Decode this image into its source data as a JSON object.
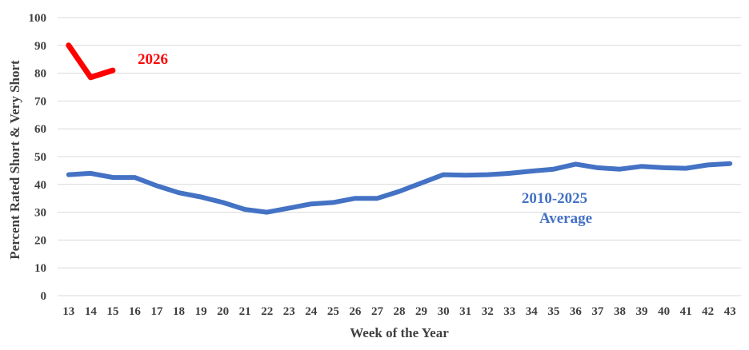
{
  "chart_data": {
    "type": "line",
    "title": "",
    "xlabel": "Week of the Year",
    "ylabel": "Percent Rated Short & Very Short",
    "x": [
      13,
      14,
      15,
      16,
      17,
      18,
      19,
      20,
      21,
      22,
      23,
      24,
      25,
      26,
      27,
      28,
      29,
      30,
      31,
      32,
      33,
      34,
      35,
      36,
      37,
      38,
      39,
      40,
      41,
      42,
      43
    ],
    "ylim": [
      0,
      100
    ],
    "yticks": [
      0,
      10,
      20,
      30,
      40,
      50,
      60,
      70,
      80,
      90,
      100
    ],
    "grid": true,
    "series": [
      {
        "name": "2010-2025 Average",
        "label_lines": [
          "2010-2025",
          "Average"
        ],
        "color": "#4472c4",
        "x": [
          13,
          14,
          15,
          16,
          17,
          18,
          19,
          20,
          21,
          22,
          23,
          24,
          25,
          26,
          27,
          28,
          29,
          30,
          31,
          32,
          33,
          34,
          35,
          36,
          37,
          38,
          39,
          40,
          41,
          42,
          43
        ],
        "values": [
          43.5,
          44,
          42.5,
          42.5,
          39.5,
          37,
          35.5,
          33.5,
          31,
          30,
          31.5,
          33,
          33.5,
          35,
          35,
          37.5,
          40.5,
          43.5,
          43.3,
          43.5,
          44,
          44.8,
          45.5,
          47.3,
          46,
          45.5,
          46.5,
          46,
          45.8,
          47,
          47.5
        ]
      },
      {
        "name": "2026",
        "label_lines": [
          "2026"
        ],
        "color": "#ff0000",
        "x": [
          13,
          14,
          15
        ],
        "values": [
          90,
          78.5,
          81
        ]
      }
    ]
  }
}
